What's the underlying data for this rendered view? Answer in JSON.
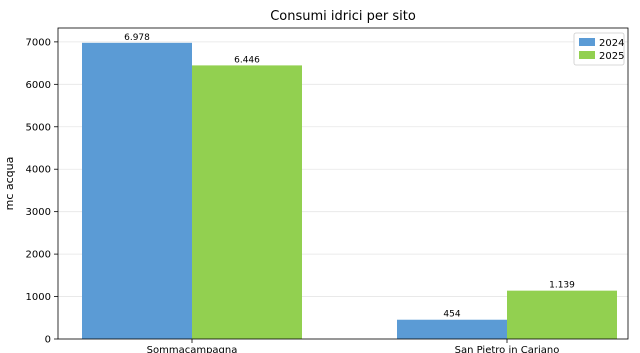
{
  "chart_data": {
    "type": "bar",
    "title": "Consumi idrici per sito",
    "xlabel": "",
    "ylabel": "mc acqua",
    "categories": [
      "Sommacampagna",
      "San Pietro in Cariano"
    ],
    "series": [
      {
        "name": "2024",
        "values": [
          6978,
          454
        ],
        "labels": [
          "6.978",
          "454"
        ],
        "color": "#5b9bd5"
      },
      {
        "name": "2025",
        "values": [
          6446,
          1139
        ],
        "labels": [
          "6.446",
          "1.139"
        ],
        "color": "#92d050"
      }
    ],
    "yticks": [
      0,
      1000,
      2000,
      3000,
      4000,
      5000,
      6000,
      7000
    ],
    "ylim": [
      0,
      7327
    ],
    "grid": true,
    "legend_position": "top-right"
  }
}
